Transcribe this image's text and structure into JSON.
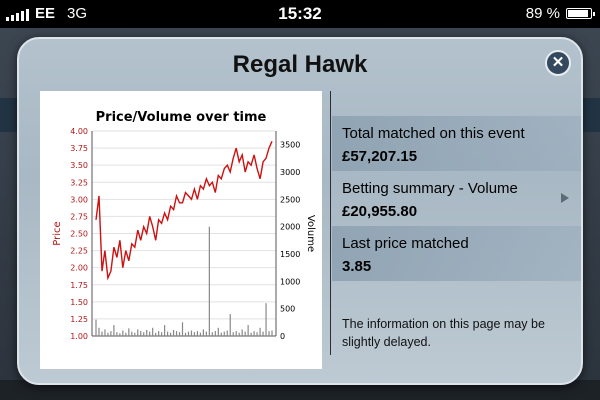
{
  "status_bar": {
    "carrier": "EE",
    "network": "3G",
    "time": "15:32",
    "battery": "89 %",
    "battery_level": 0.89,
    "signal_bars": 5
  },
  "modal": {
    "title": "Regal Hawk",
    "close_icon": "close-circle-icon",
    "rows": [
      {
        "label": "Total matched on this event",
        "value": "£57,207.15"
      },
      {
        "label": "Betting summary - Volume",
        "value": "£20,955.80"
      },
      {
        "label": "Last price matched",
        "value": "3.85"
      }
    ],
    "note": "The information on this page may be slightly delayed."
  },
  "colors": {
    "price_line": "#cc1111",
    "volume_bars": "#888888",
    "modal_bg": "#aebdc8"
  },
  "chart_data": {
    "type": "line",
    "title": "Price/Volume over time",
    "ylabel": "Price",
    "y2label": "Volume",
    "ylim": [
      1.0,
      4.0
    ],
    "y2lim": [
      0,
      3750
    ],
    "y_ticks": [
      "1.00",
      "1.25",
      "1.50",
      "1.75",
      "2.00",
      "2.25",
      "2.50",
      "2.75",
      "3.00",
      "3.25",
      "3.50",
      "3.75",
      "4.00"
    ],
    "y2_ticks": [
      "0",
      "500",
      "1000",
      "1500",
      "2000",
      "2500",
      "3000",
      "3500"
    ],
    "grid": true,
    "series": [
      {
        "axis": "left",
        "values": [
          2.7,
          3.05,
          1.95,
          2.25,
          1.85,
          1.95,
          2.3,
          2.15,
          2.4,
          2.0,
          2.25,
          2.1,
          2.35,
          2.3,
          2.55,
          2.4,
          2.6,
          2.5,
          2.75,
          2.6,
          2.4,
          2.7,
          2.65,
          2.8,
          2.7,
          2.9,
          2.85,
          3.05,
          2.95,
          2.95,
          3.1,
          3.05,
          3.0,
          3.15,
          3.0,
          3.2,
          3.15,
          3.3,
          3.2,
          3.25,
          3.1,
          3.35,
          3.3,
          3.45,
          3.5,
          3.4,
          3.6,
          3.75,
          3.55,
          3.65,
          3.4,
          3.55,
          3.5,
          3.65,
          3.45,
          3.3,
          3.55,
          3.6,
          3.75,
          3.85
        ]
      },
      {
        "axis": "right",
        "type": "bar",
        "values": [
          300,
          150,
          80,
          120,
          60,
          90,
          200,
          70,
          50,
          100,
          60,
          140,
          80,
          60,
          120,
          90,
          70,
          110,
          80,
          150,
          60,
          90,
          70,
          200,
          80,
          60,
          110,
          90,
          70,
          250,
          60,
          80,
          100,
          70,
          90,
          60,
          120,
          80,
          2000,
          70,
          90,
          150,
          60,
          80,
          100,
          400,
          70,
          90,
          60,
          120,
          80,
          200,
          60,
          90,
          70,
          150,
          80,
          600,
          90,
          100
        ]
      }
    ]
  }
}
